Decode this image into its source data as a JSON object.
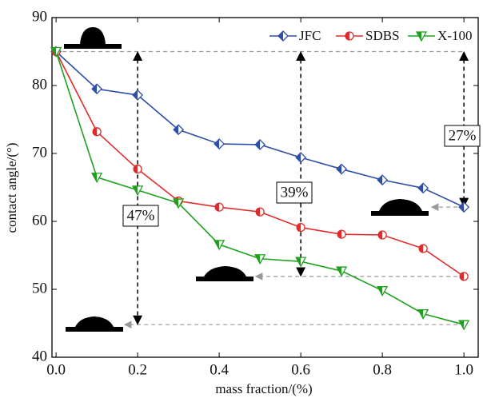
{
  "chart_data": {
    "type": "line",
    "x_label": "mass fraction/(%)",
    "y_label": "contact angle/(°)",
    "x": [
      0,
      0.1,
      0.2,
      0.3,
      0.4,
      0.5,
      0.6,
      0.7,
      0.8,
      0.9,
      1.0
    ],
    "series": [
      {
        "name": "JFC",
        "color": "#2f4fa6",
        "marker": "diamond",
        "values": [
          85,
          79.5,
          78.6,
          73.5,
          71.4,
          71.3,
          69.4,
          67.7,
          66.1,
          64.9,
          62.1
        ]
      },
      {
        "name": "SDBS",
        "color": "#e02b2b",
        "marker": "circle",
        "values": [
          85,
          73.2,
          67.7,
          63.0,
          62.1,
          61.4,
          59.1,
          58.1,
          58.0,
          56.0,
          51.9
        ]
      },
      {
        "name": "X-100",
        "color": "#1fa01f",
        "marker": "triangle-down",
        "values": [
          85,
          66.5,
          64.6,
          62.7,
          56.6,
          54.5,
          54.1,
          52.7,
          49.8,
          46.4,
          44.8
        ]
      }
    ],
    "xlim": [
      -0.01,
      1.035
    ],
    "ylim": [
      40,
      90
    ],
    "xticks": [
      {
        "value": 0,
        "label": "0.0"
      },
      0.2,
      0.4,
      0.6,
      0.8,
      {
        "value": 1,
        "label": "1.0"
      }
    ],
    "yticks": [
      40,
      50,
      60,
      70,
      80,
      90
    ],
    "annotations": [
      "47%",
      "39%",
      "27%"
    ],
    "legend": "top-right"
  }
}
